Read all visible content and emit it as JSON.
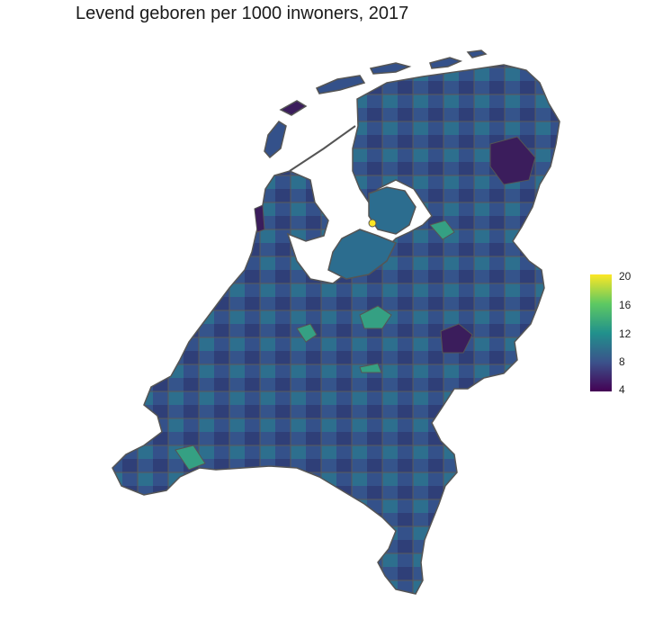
{
  "title": "Levend geboren per 1000 inwoners, 2017",
  "legend": {
    "ticks": [
      "20",
      "16",
      "12",
      "8",
      "4"
    ],
    "tick_values": [
      20,
      16,
      12,
      8,
      4
    ],
    "range": [
      4,
      20
    ],
    "colors": [
      "#440154",
      "#3b528b",
      "#21918c",
      "#5ec962",
      "#fde725"
    ]
  },
  "palette": {
    "dark": "#2e3a70",
    "mid": "#33558c",
    "teal": "#2a7a8c",
    "green": "#33a387",
    "yellow": "#fde725",
    "purple": "#3f1d5e",
    "border": "#555555"
  }
}
